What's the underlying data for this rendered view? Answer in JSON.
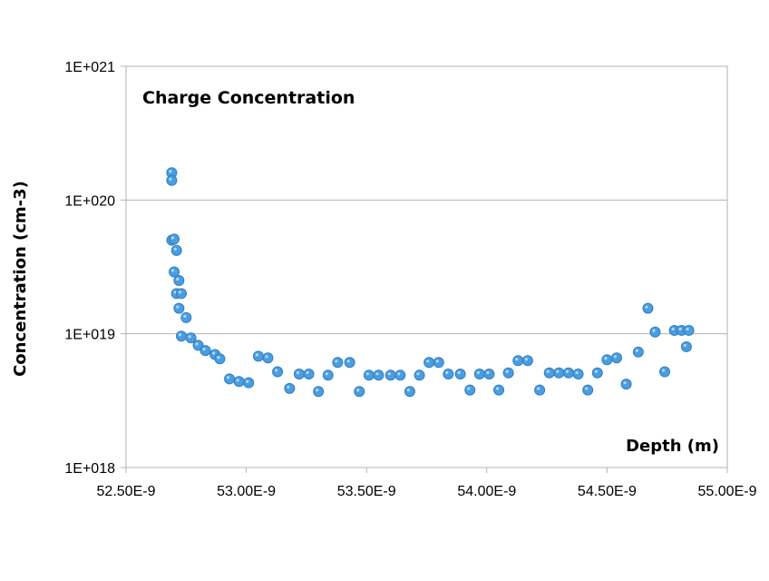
{
  "chart_data": {
    "type": "scatter",
    "title": "Charge Concentration",
    "xlabel": "Depth (m)",
    "ylabel": "Concentration (cm-3)",
    "x_range": [
      52.5,
      55.0
    ],
    "y_range": [
      1e+18,
      1e+21
    ],
    "y_scale": "log",
    "x_ticks": [
      52.5,
      53.0,
      53.5,
      54.0,
      54.5,
      55.0
    ],
    "x_tick_labels": [
      "52.50E-9",
      "53.00E-9",
      "53.50E-9",
      "54.00E-9",
      "54.50E-9",
      "55.00E-9"
    ],
    "y_ticks": [
      1e+18,
      1e+19,
      1e+20,
      1e+21
    ],
    "y_tick_labels": [
      "1E+018",
      "1E+019",
      "1E+020",
      "1E+021"
    ],
    "grid": "horizontal",
    "legend": "none",
    "marker_color": "#4a9de0",
    "points": [
      {
        "x": 52.69,
        "y": 1.6e+20
      },
      {
        "x": 52.69,
        "y": 1.4e+20
      },
      {
        "x": 52.69,
        "y": 5e+19
      },
      {
        "x": 52.7,
        "y": 5.1e+19
      },
      {
        "x": 52.71,
        "y": 4.2e+19
      },
      {
        "x": 52.7,
        "y": 2.9e+19
      },
      {
        "x": 52.72,
        "y": 2.5e+19
      },
      {
        "x": 52.71,
        "y": 2e+19
      },
      {
        "x": 52.73,
        "y": 2e+19
      },
      {
        "x": 52.72,
        "y": 1.55e+19
      },
      {
        "x": 52.75,
        "y": 1.32e+19
      },
      {
        "x": 52.73,
        "y": 9.6e+18
      },
      {
        "x": 52.77,
        "y": 9.3e+18
      },
      {
        "x": 52.8,
        "y": 8.2e+18
      },
      {
        "x": 52.83,
        "y": 7.5e+18
      },
      {
        "x": 52.87,
        "y": 7e+18
      },
      {
        "x": 52.89,
        "y": 6.5e+18
      },
      {
        "x": 52.93,
        "y": 4.6e+18
      },
      {
        "x": 52.97,
        "y": 4.4e+18
      },
      {
        "x": 53.01,
        "y": 4.3e+18
      },
      {
        "x": 53.05,
        "y": 6.8e+18
      },
      {
        "x": 53.09,
        "y": 6.6e+18
      },
      {
        "x": 53.13,
        "y": 5.2e+18
      },
      {
        "x": 53.18,
        "y": 3.9e+18
      },
      {
        "x": 53.22,
        "y": 5e+18
      },
      {
        "x": 53.26,
        "y": 5e+18
      },
      {
        "x": 53.3,
        "y": 3.7e+18
      },
      {
        "x": 53.34,
        "y": 4.9e+18
      },
      {
        "x": 53.38,
        "y": 6.1e+18
      },
      {
        "x": 53.43,
        "y": 6.1e+18
      },
      {
        "x": 53.47,
        "y": 3.7e+18
      },
      {
        "x": 53.51,
        "y": 4.9e+18
      },
      {
        "x": 53.55,
        "y": 4.9e+18
      },
      {
        "x": 53.6,
        "y": 4.9e+18
      },
      {
        "x": 53.64,
        "y": 4.9e+18
      },
      {
        "x": 53.68,
        "y": 3.7e+18
      },
      {
        "x": 53.72,
        "y": 4.9e+18
      },
      {
        "x": 53.76,
        "y": 6.1e+18
      },
      {
        "x": 53.8,
        "y": 6.1e+18
      },
      {
        "x": 53.84,
        "y": 5e+18
      },
      {
        "x": 53.89,
        "y": 5e+18
      },
      {
        "x": 53.93,
        "y": 3.8e+18
      },
      {
        "x": 53.97,
        "y": 5e+18
      },
      {
        "x": 54.01,
        "y": 5e+18
      },
      {
        "x": 54.05,
        "y": 3.8e+18
      },
      {
        "x": 54.09,
        "y": 5.1e+18
      },
      {
        "x": 54.13,
        "y": 6.3e+18
      },
      {
        "x": 54.17,
        "y": 6.3e+18
      },
      {
        "x": 54.22,
        "y": 3.8e+18
      },
      {
        "x": 54.26,
        "y": 5.1e+18
      },
      {
        "x": 54.3,
        "y": 5.1e+18
      },
      {
        "x": 54.34,
        "y": 5.1e+18
      },
      {
        "x": 54.38,
        "y": 5e+18
      },
      {
        "x": 54.42,
        "y": 3.8e+18
      },
      {
        "x": 54.46,
        "y": 5.1e+18
      },
      {
        "x": 54.5,
        "y": 6.4e+18
      },
      {
        "x": 54.54,
        "y": 6.6e+18
      },
      {
        "x": 54.58,
        "y": 4.2e+18
      },
      {
        "x": 54.63,
        "y": 7.3e+18
      },
      {
        "x": 54.67,
        "y": 1.55e+19
      },
      {
        "x": 54.7,
        "y": 1.03e+19
      },
      {
        "x": 54.74,
        "y": 5.2e+18
      },
      {
        "x": 54.78,
        "y": 1.06e+19
      },
      {
        "x": 54.81,
        "y": 1.06e+19
      },
      {
        "x": 54.83,
        "y": 8e+18
      },
      {
        "x": 54.84,
        "y": 1.06e+19
      }
    ]
  }
}
